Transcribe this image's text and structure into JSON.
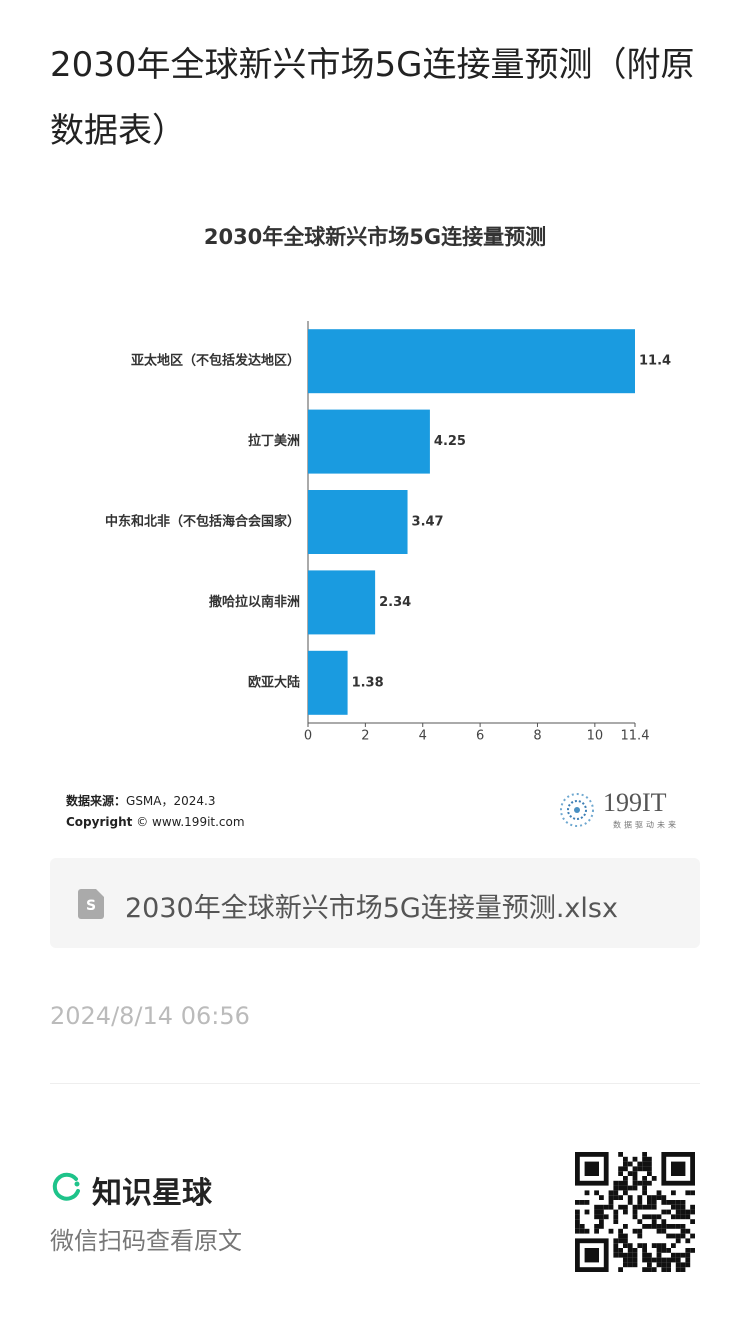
{
  "page_title": "2030年全球新兴市场5G连接量预测（附原数据表）",
  "chart_data": {
    "type": "bar",
    "orientation": "horizontal",
    "title": "2030年全球新兴市场5G连接量预测",
    "categories": [
      "亚太地区（不包括发达地区）",
      "拉丁美洲",
      "中东和北非（不包括海合会国家）",
      "撒哈拉以南非洲",
      "欧亚大陆"
    ],
    "values": [
      11.4,
      4.25,
      3.47,
      2.34,
      1.38
    ],
    "color": "#1a9be0",
    "xlim": [
      0,
      11.4
    ],
    "xticks": [
      0,
      2,
      4,
      6,
      8,
      10,
      11.4
    ]
  },
  "source": {
    "label": "数据来源：",
    "text": "GSMA，2024.3"
  },
  "copyright": {
    "label": "Copyright",
    "text": "© www.199it.com"
  },
  "logo": {
    "name": "199IT",
    "tagline": "数据驱动未来"
  },
  "file_name": "2030年全球新兴市场5G连接量预测.xlsx",
  "date": "2024/8/14 06:56",
  "brand": "知识星球",
  "scan_hint": "微信扫码查看原文"
}
